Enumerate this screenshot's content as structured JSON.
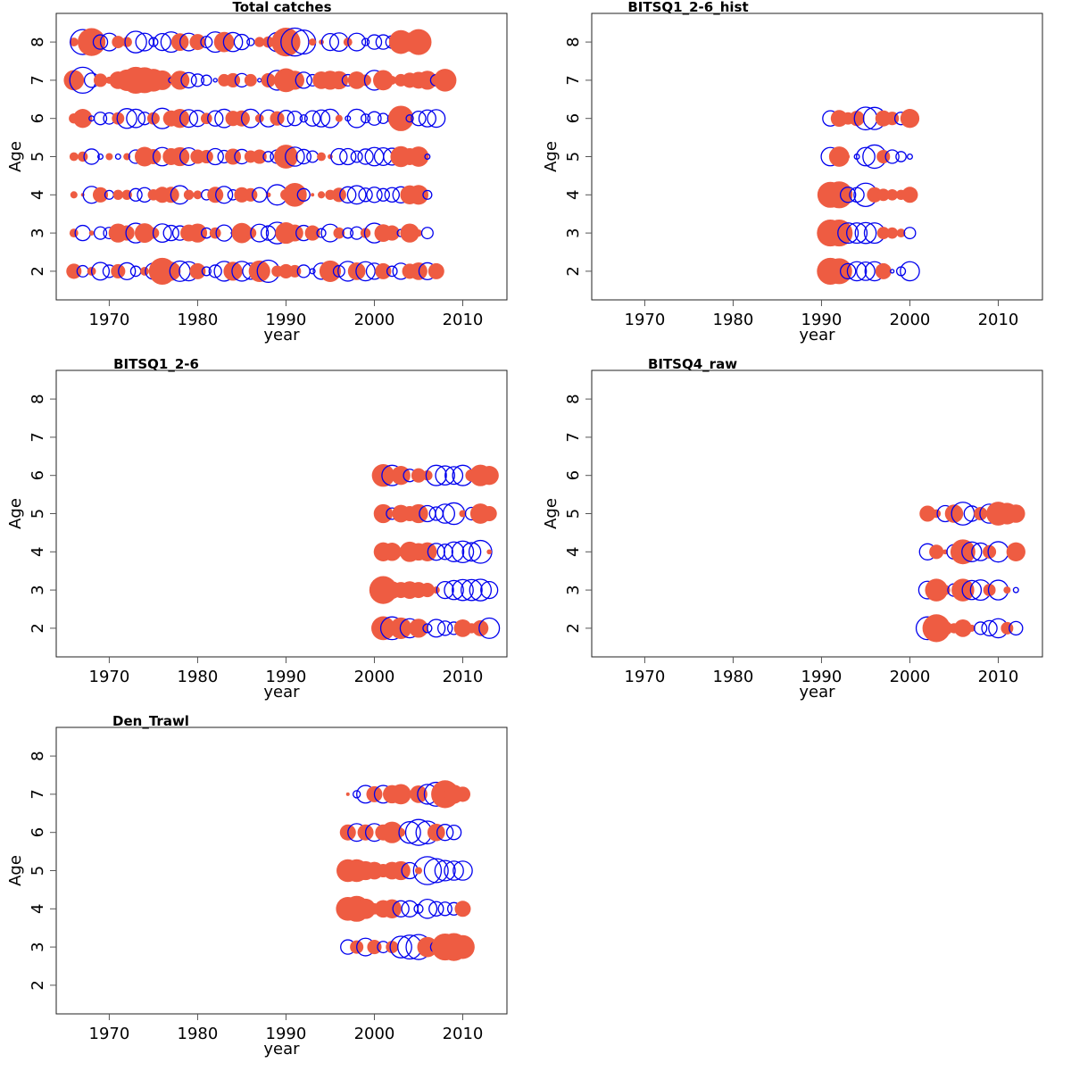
{
  "chart_data": {
    "type": "scatter",
    "subtype": "bubble residual plot",
    "layout": "3 rows x 2 columns (5 panels)",
    "shared": {
      "xlabel": "year",
      "ylabel": "Age",
      "xlim": [
        1964,
        2015
      ],
      "ylim": [
        1.25,
        8.75
      ],
      "xticks": [
        1970,
        1980,
        1990,
        2000,
        2010
      ],
      "yticks": [
        2,
        3,
        4,
        5,
        6,
        7,
        8
      ],
      "positive_color": "#EE5C42",
      "negative_color": "#0000EE",
      "positive_style": "filled circle",
      "negative_style": "open circle",
      "value_meaning": "residual; circle area proportional to magnitude"
    },
    "panels": [
      {
        "title": "Total catches",
        "years_from": 1966,
        "rows": [
          {
            "age": 8,
            "values": [
              0.3,
              -2.4,
              3.0,
              -0.8,
              -1.2,
              0.6,
              0.4,
              -1.8,
              -1.2,
              -0.3,
              -1.1,
              -1.6,
              1.2,
              -1.2,
              1.0,
              -0.5,
              -1.6,
              1.6,
              -1.4,
              -0.9,
              -0.2,
              0.4,
              0.5,
              -1.4,
              3.2,
              -3.0,
              -2.2,
              0.2,
              0.1,
              -1.1,
              -1.3,
              0.3,
              -1.2,
              -0.2,
              -0.8,
              -0.8,
              -0.6,
              2.2,
              1.4,
              2.6,
              0.0,
              0.0,
              0.0,
              0.0,
              0.0,
              0.0,
              0.0
            ]
          },
          {
            "age": 7,
            "values": [
              1.6,
              -2.6,
              -0.8,
              0.7,
              0.2,
              1.2,
              1.8,
              2.8,
              2.6,
              2.0,
              1.5,
              -0.1,
              1.4,
              -0.9,
              -0.6,
              -0.4,
              -0.05,
              0.6,
              0.8,
              -0.7,
              0.6,
              -0.05,
              0.8,
              -1.5,
              2.2,
              1.4,
              -1.0,
              -0.5,
              1.2,
              1.4,
              1.3,
              -0.5,
              1.2,
              0.5,
              -1.5,
              1.6,
              0.3,
              0.6,
              0.9,
              1.1,
              1.4,
              -0.5,
              2.0,
              0.0,
              0.0,
              0.0,
              0.0
            ]
          },
          {
            "age": 6,
            "values": [
              0.4,
              1.4,
              -0.1,
              -0.6,
              -0.5,
              0.6,
              -1.5,
              -1.3,
              -0.6,
              0.6,
              -1.6,
              1.0,
              1.4,
              -1.2,
              -1.0,
              0.5,
              -0.9,
              -1.3,
              0.9,
              1.0,
              -1.3,
              0.3,
              -1.1,
              0.8,
              -1.0,
              -0.8,
              -0.2,
              -0.9,
              -1.1,
              -1.3,
              0.2,
              -0.1,
              -1.3,
              -0.3,
              -0.7,
              -0.4,
              -0.3,
              2.5,
              -0.2,
              -0.8,
              -1.1,
              -1.2,
              0.0,
              0.0,
              0.0,
              0.0,
              0.0
            ]
          },
          {
            "age": 5,
            "values": [
              0.3,
              0.4,
              -0.9,
              -0.1,
              0.2,
              -0.1,
              0.2,
              -0.7,
              1.5,
              0.9,
              -1.3,
              1.1,
              1.4,
              -1.2,
              0.8,
              0.7,
              -1.0,
              -0.6,
              1.0,
              -0.8,
              0.6,
              0.8,
              -0.4,
              -0.7,
              2.2,
              -1.4,
              -0.8,
              -0.5,
              0.3,
              0.1,
              -1.0,
              -1.0,
              -0.5,
              -0.9,
              -1.3,
              -1.2,
              -1.1,
              1.7,
              1.1,
              1.6,
              -0.1,
              0.0,
              0.0,
              0.0,
              0.0,
              0.0,
              0.0
            ]
          },
          {
            "age": 4,
            "values": [
              0.2,
              0.05,
              -1.1,
              0.9,
              -0.3,
              0.4,
              0.4,
              -0.6,
              -0.8,
              0.5,
              1.0,
              1.0,
              -1.3,
              0.4,
              0.3,
              -0.4,
              1.0,
              -1.1,
              -0.4,
              0.9,
              0.7,
              -0.8,
              0.1,
              -1.6,
              0.5,
              2.2,
              -0.6,
              0.05,
              0.2,
              0.4,
              0.8,
              -1.0,
              -1.3,
              -0.7,
              -0.9,
              -0.6,
              -0.8,
              -1.0,
              1.4,
              1.5,
              -0.3,
              0.0,
              0.0,
              0.0,
              0.0,
              0.0,
              0.0
            ]
          },
          {
            "age": 3,
            "values": [
              0.3,
              -0.9,
              0.1,
              -0.6,
              -0.5,
              1.4,
              0.9,
              -1.5,
              1.5,
              0.5,
              -1.3,
              -0.9,
              -0.8,
              1.1,
              1.4,
              -0.4,
              0.5,
              -1.0,
              -0.05,
              1.6,
              0.5,
              -1.2,
              -0.8,
              -1.8,
              1.8,
              1.1,
              -0.9,
              0.9,
              -0.3,
              -1.2,
              0.5,
              -0.4,
              -0.6,
              0.4,
              -1.5,
              1.2,
              0.9,
              -0.2,
              1.4,
              0.2,
              -0.5,
              0.0,
              0.0,
              0.0,
              0.0,
              0.0,
              0.0
            ]
          },
          {
            "age": 2,
            "values": [
              0.9,
              -0.5,
              0.3,
              -1.2,
              -0.6,
              0.8,
              -1.1,
              -0.4,
              0.3,
              -1.0,
              2.8,
              1.4,
              -1.6,
              -1.4,
              1.0,
              -0.3,
              -0.6,
              -1.5,
              1.4,
              -1.5,
              -1.0,
              1.8,
              -1.9,
              0.5,
              0.8,
              0.6,
              -0.6,
              -0.1,
              -1.0,
              1.8,
              -0.5,
              -1.5,
              1.2,
              -1.4,
              -1.0,
              1.0,
              -0.4,
              -1.0,
              0.9,
              1.2,
              -1.1,
              1.0,
              0.0,
              0.0,
              0.0,
              0.0,
              0.0
            ]
          }
        ]
      },
      {
        "title": "BITSQ1_2-6_hist",
        "years_from": 1991,
        "rows": [
          {
            "age": 6,
            "values": [
              -0.9,
              1.1,
              0.6,
              0.9,
              -2.0,
              -1.9,
              1.0,
              0.7,
              -0.6,
              1.4
            ]
          },
          {
            "age": 5,
            "values": [
              -1.3,
              1.6,
              0.05,
              -0.1,
              -1.3,
              -2.1,
              0.7,
              -0.7,
              -0.4,
              -0.1
            ]
          },
          {
            "age": 4,
            "values": [
              2.6,
              2.8,
              -0.9,
              -0.8,
              -2.1,
              0.9,
              0.6,
              0.5,
              0.4,
              1.0
            ]
          },
          {
            "age": 3,
            "values": [
              2.8,
              2.8,
              -1.6,
              -1.6,
              -1.7,
              -1.6,
              0.6,
              0.5,
              0.3,
              -0.5
            ]
          },
          {
            "age": 2,
            "values": [
              2.8,
              2.6,
              -0.9,
              -1.4,
              -1.3,
              -1.4,
              1.0,
              -0.05,
              -0.3,
              -1.4
            ]
          }
        ]
      },
      {
        "title": "BITSQ1_2-6",
        "years_from": 2001,
        "rows": [
          {
            "age": 6,
            "values": [
              2.0,
              -1.6,
              1.4,
              -0.6,
              0.8,
              0.4,
              -1.6,
              -1.4,
              -1.2,
              -1.6,
              0.6,
              1.8,
              1.4
            ]
          },
          {
            "age": 5,
            "values": [
              1.4,
              -0.5,
              1.2,
              0.9,
              1.4,
              -1.0,
              -0.7,
              -1.4,
              -1.8,
              0.2,
              -0.6,
              1.6,
              0.9
            ]
          },
          {
            "age": 4,
            "values": [
              1.4,
              1.3,
              0.3,
              1.6,
              1.2,
              1.4,
              -1.1,
              -0.9,
              -1.5,
              -1.8,
              -1.3,
              -2.0,
              0.1
            ]
          },
          {
            "age": 3,
            "values": [
              3.0,
              1.2,
              1.0,
              1.2,
              1.0,
              0.8,
              0.2,
              -1.1,
              -1.4,
              -1.7,
              -1.7,
              -1.8,
              -1.1
            ]
          },
          {
            "age": 2,
            "values": [
              2.2,
              -2.0,
              1.8,
              -1.4,
              1.4,
              -0.3,
              -1.2,
              -0.8,
              -0.6,
              1.2,
              0.4,
              1.0,
              -1.6
            ]
          }
        ]
      },
      {
        "title": "BITSQ4_raw",
        "years_from": 2002,
        "rows": [
          {
            "age": 5,
            "values": [
              1.0,
              0.3,
              -1.0,
              1.3,
              -2.0,
              -0.9,
              0.7,
              -1.4,
              2.2,
              1.8,
              1.3
            ]
          },
          {
            "age": 4,
            "values": [
              -1.0,
              0.8,
              0.1,
              -0.8,
              2.4,
              -1.5,
              -1.2,
              0.7,
              -1.6,
              0.0,
              1.4
            ]
          },
          {
            "age": 3,
            "values": [
              -1.2,
              2.0,
              0.4,
              -0.6,
              2.0,
              -1.4,
              -1.6,
              0.6,
              -1.5,
              0.2,
              -0.1
            ]
          },
          {
            "age": 2,
            "values": [
              -2.0,
              3.0,
              0.8,
              0.4,
              1.2,
              0.2,
              -0.6,
              -0.9,
              -1.4,
              0.6,
              -0.7
            ]
          }
        ]
      },
      {
        "title": "Den_Trawl",
        "years_from": 1997,
        "rows": [
          {
            "age": 7,
            "values": [
              0.05,
              -0.2,
              -1.2,
              1.0,
              -1.2,
              1.3,
              1.6,
              0.05,
              1.2,
              -1.5,
              -2.2,
              3.0,
              1.4,
              0.9
            ]
          },
          {
            "age": 6,
            "values": [
              1.0,
              -1.2,
              1.0,
              -1.2,
              1.0,
              1.8,
              0.3,
              -1.8,
              -2.6,
              -2.0,
              1.2,
              -1.0,
              -0.8,
              0.0
            ]
          },
          {
            "age": 5,
            "values": [
              2.0,
              2.0,
              1.4,
              1.2,
              0.7,
              1.2,
              1.4,
              -1.0,
              0.2,
              -3.0,
              -2.2,
              -1.6,
              -1.4,
              -1.4
            ]
          },
          {
            "age": 4,
            "values": [
              2.2,
              2.6,
              1.6,
              0.5,
              1.2,
              1.4,
              -1.0,
              -1.0,
              -0.3,
              -1.4,
              -0.8,
              -0.7,
              -0.6,
              1.0
            ]
          },
          {
            "age": 3,
            "values": [
              -0.8,
              0.7,
              -1.2,
              0.8,
              -0.5,
              0.6,
              -1.8,
              -2.2,
              -2.4,
              1.6,
              -0.5,
              2.8,
              3.0,
              2.2
            ]
          }
        ]
      }
    ]
  }
}
